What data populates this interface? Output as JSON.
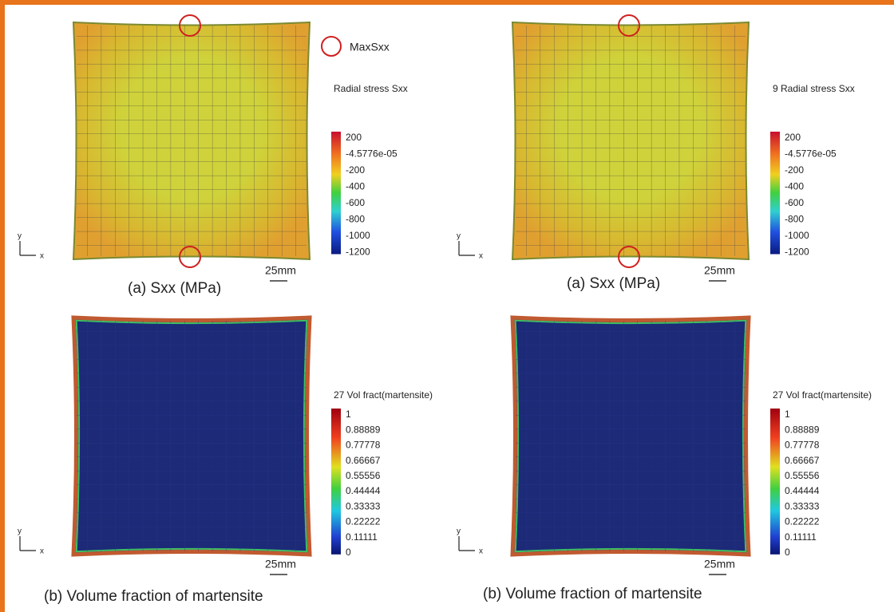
{
  "panels": [
    {
      "caption": "(a)  Sxx (MPa)",
      "legend_title": "Radial stress Sxx",
      "max_label": "MaxSxx",
      "scale": "25mm",
      "axis_y": "y",
      "axis_x": "x",
      "legend_ticks": [
        "200",
        "-4.5776e-05",
        "-200",
        "-400",
        "-600",
        "-800",
        "-1000",
        "-1200"
      ]
    },
    {
      "caption": "(a) Sxx (MPa)",
      "legend_title": "9 Radial stress Sxx",
      "scale": "25mm",
      "axis_y": "y",
      "axis_x": "x",
      "legend_ticks": [
        "200",
        "-4.5776e-05",
        "-200",
        "-400",
        "-600",
        "-800",
        "-1000",
        "-1200"
      ]
    },
    {
      "caption": "(b) Volume fraction of martensite",
      "legend_title": "27 Vol fract(martensite)",
      "scale": "25mm",
      "axis_y": "y",
      "axis_x": "x",
      "legend_ticks": [
        "1",
        "0.88889",
        "0.77778",
        "0.66667",
        "0.55556",
        "0.44444",
        "0.33333",
        "0.22222",
        "0.11111",
        "0"
      ]
    },
    {
      "caption": "(b) Volume fraction of martensite",
      "legend_title": "27 Vol fract(martensite)",
      "scale": "25mm",
      "axis_y": "y",
      "axis_x": "x",
      "legend_ticks": [
        "1",
        "0.88889",
        "0.77778",
        "0.66667",
        "0.55556",
        "0.44444",
        "0.33333",
        "0.22222",
        "0.11111",
        "0"
      ]
    }
  ]
}
